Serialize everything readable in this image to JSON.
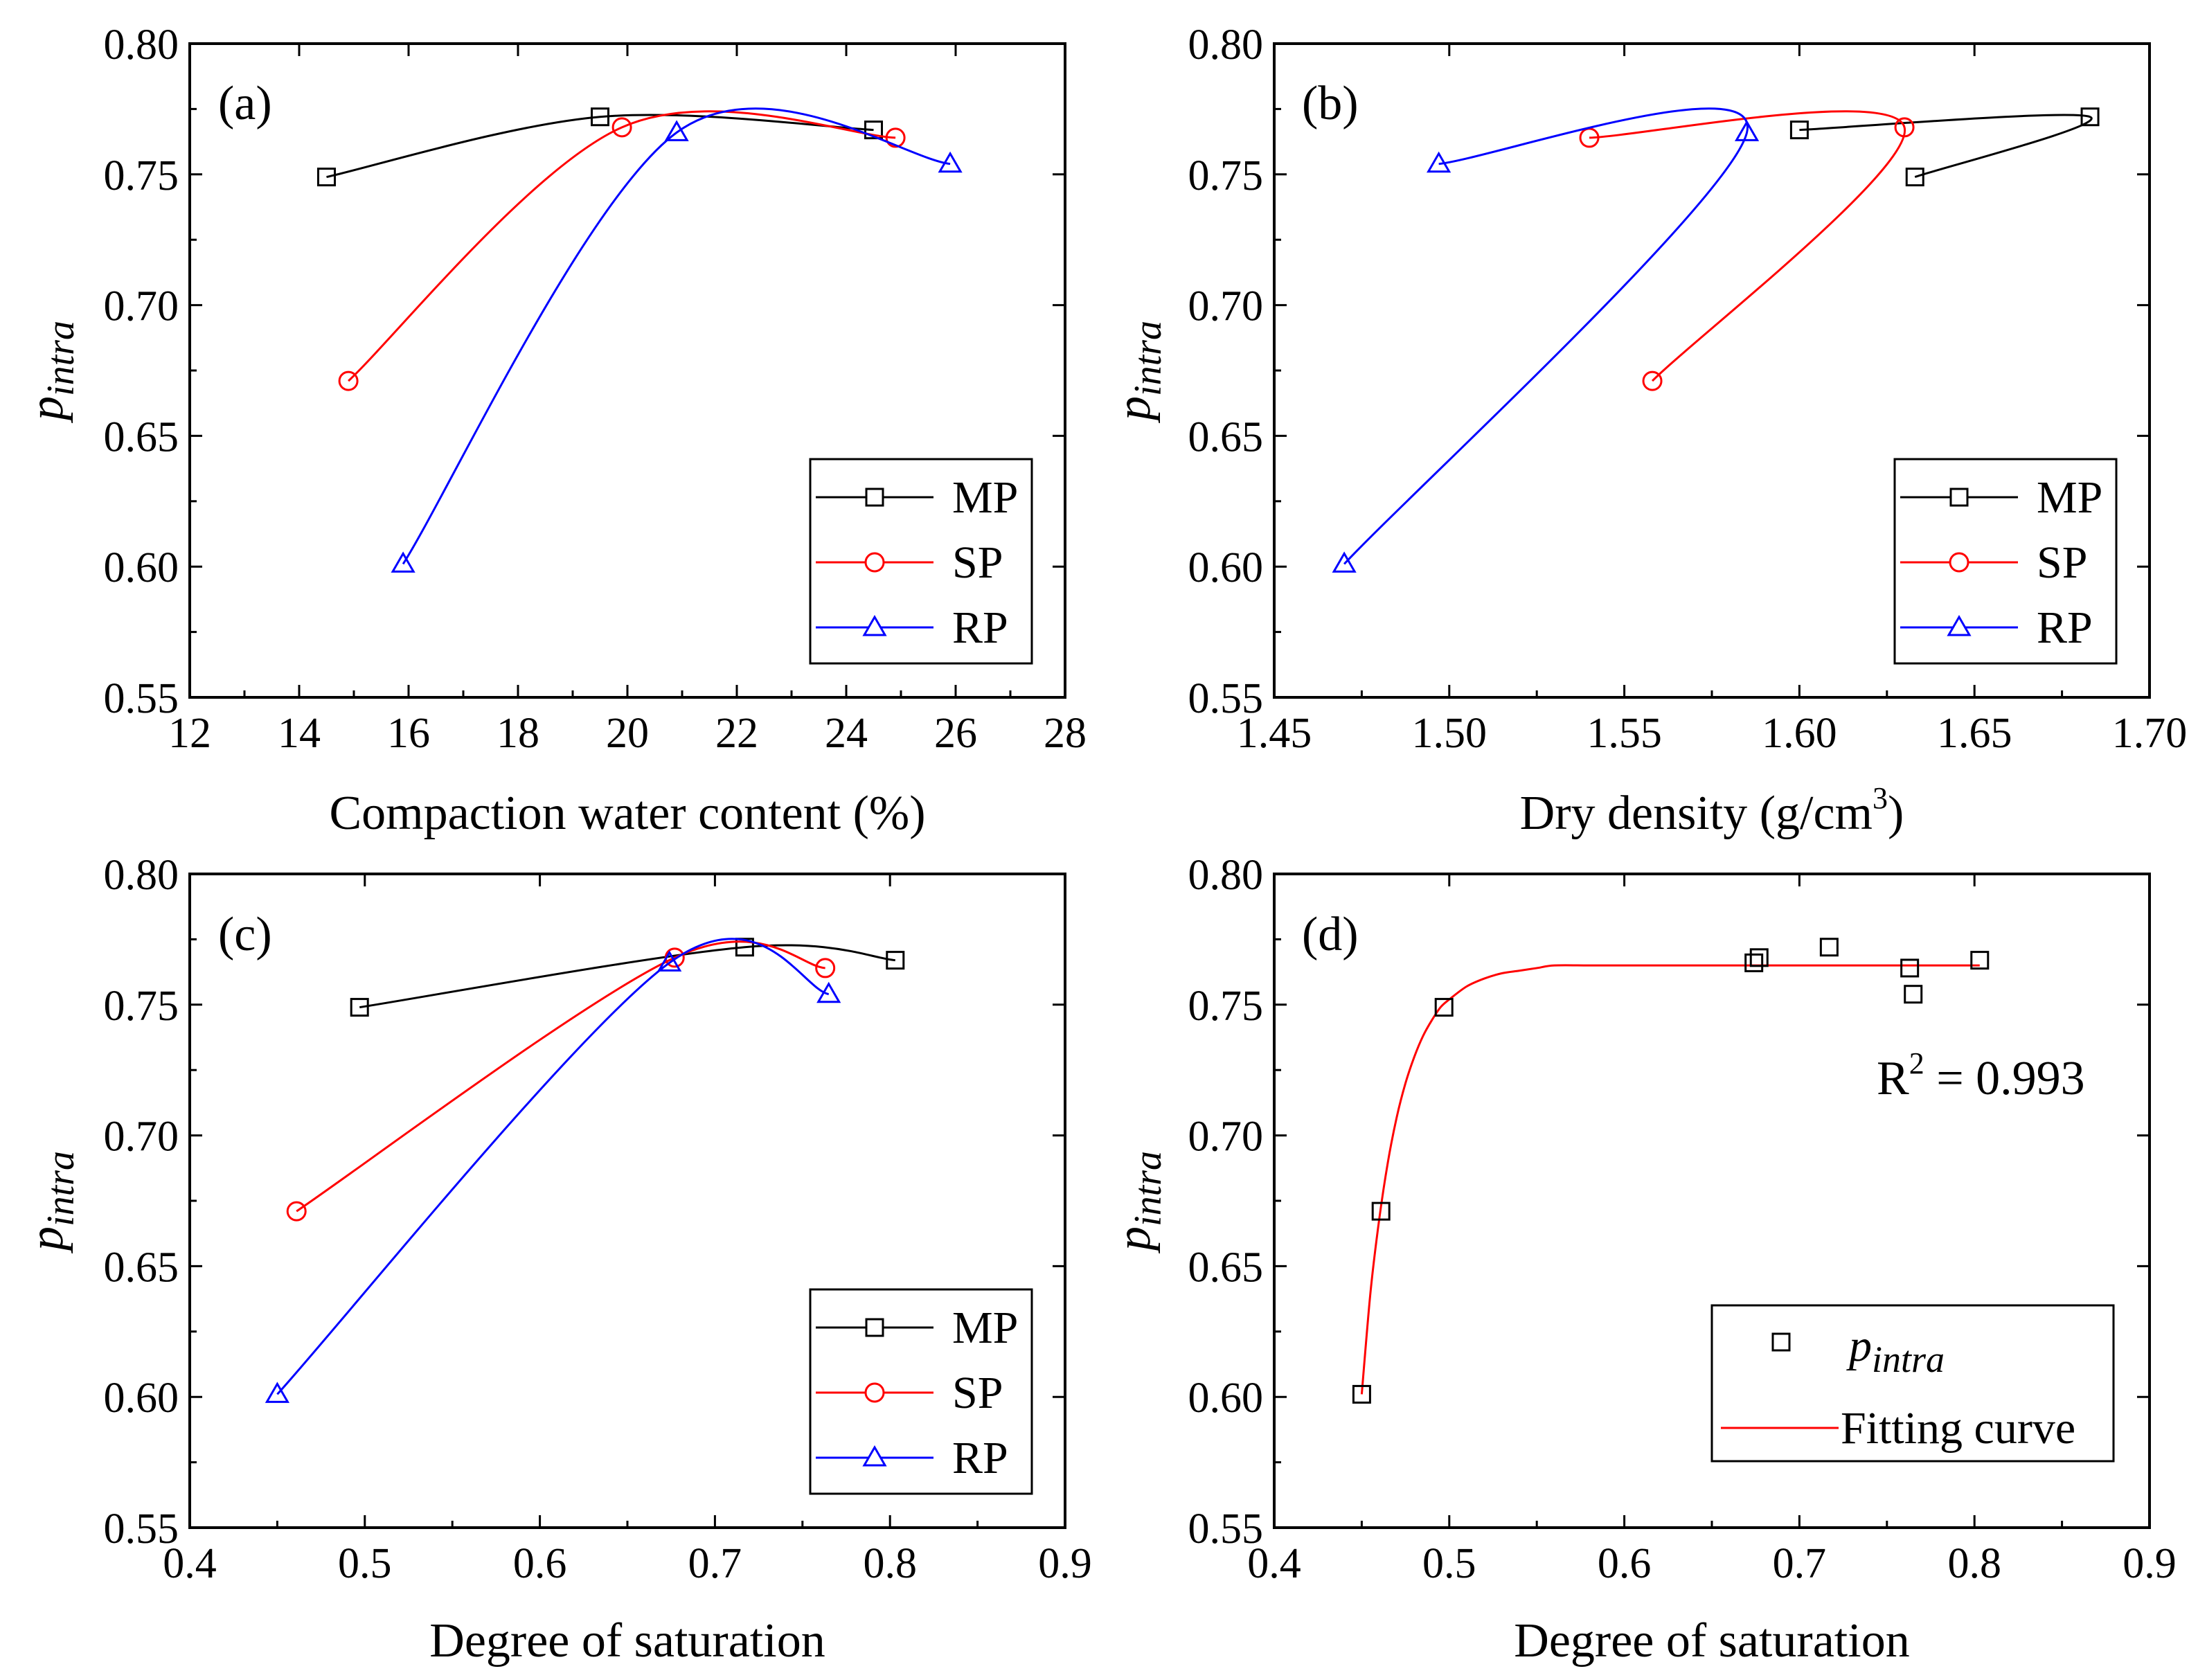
{
  "chart_data": [
    {
      "type": "line",
      "panel_label": "(a)",
      "xlabel": "Compaction water content (%)",
      "ylabel_main": "p",
      "ylabel_sub": "intra",
      "xlim": [
        12,
        28
      ],
      "ylim": [
        0.55,
        0.8
      ],
      "xticks": [
        12,
        14,
        16,
        18,
        20,
        22,
        24,
        26,
        28
      ],
      "xtick_labels": [
        "12",
        "14",
        "16",
        "18",
        "20",
        "22",
        "24",
        "26",
        "28"
      ],
      "yticks": [
        0.55,
        0.6,
        0.65,
        0.7,
        0.75,
        0.8
      ],
      "ytick_labels": [
        "0.55",
        "0.60",
        "0.65",
        "0.70",
        "0.75",
        "0.80"
      ],
      "legend_position": "bottom-right",
      "series": [
        {
          "name": "MP",
          "marker": "square",
          "color": "#000000",
          "x": [
            14.5,
            19.5,
            24.5
          ],
          "y": [
            0.749,
            0.772,
            0.767
          ]
        },
        {
          "name": "SP",
          "marker": "circle",
          "color": "#ff0000",
          "x": [
            14.9,
            19.9,
            24.9
          ],
          "y": [
            0.671,
            0.768,
            0.764
          ]
        },
        {
          "name": "RP",
          "marker": "triangle",
          "color": "#0000ff",
          "x": [
            15.9,
            20.9,
            25.9
          ],
          "y": [
            0.601,
            0.766,
            0.754
          ]
        }
      ]
    },
    {
      "type": "line",
      "panel_label": "(b)",
      "xlabel": "Dry density (g/cm",
      "xlabel_sup": "3",
      "xlabel_end": ")",
      "ylabel_main": "p",
      "ylabel_sub": "intra",
      "xlim": [
        1.45,
        1.7
      ],
      "ylim": [
        0.55,
        0.8
      ],
      "xticks": [
        1.45,
        1.5,
        1.55,
        1.6,
        1.65,
        1.7
      ],
      "xtick_labels": [
        "1.45",
        "1.50",
        "1.55",
        "1.60",
        "1.65",
        "1.70"
      ],
      "yticks": [
        0.55,
        0.6,
        0.65,
        0.7,
        0.75,
        0.8
      ],
      "ytick_labels": [
        "0.55",
        "0.60",
        "0.65",
        "0.70",
        "0.75",
        "0.80"
      ],
      "legend_position": "bottom-right",
      "series": [
        {
          "name": "MP",
          "marker": "square",
          "color": "#000000",
          "x": [
            1.633,
            1.683,
            1.6
          ],
          "y": [
            0.749,
            0.772,
            0.767
          ]
        },
        {
          "name": "SP",
          "marker": "circle",
          "color": "#ff0000",
          "x": [
            1.558,
            1.63,
            1.54
          ],
          "y": [
            0.671,
            0.768,
            0.764
          ]
        },
        {
          "name": "RP",
          "marker": "triangle",
          "color": "#0000ff",
          "x": [
            1.47,
            1.585,
            1.497
          ],
          "y": [
            0.601,
            0.766,
            0.754
          ]
        }
      ]
    },
    {
      "type": "line",
      "panel_label": "(c)",
      "xlabel": "Degree of saturation",
      "ylabel_main": "p",
      "ylabel_sub": "intra",
      "xlim": [
        0.4,
        0.9
      ],
      "ylim": [
        0.55,
        0.8
      ],
      "xticks": [
        0.4,
        0.5,
        0.6,
        0.7,
        0.8,
        0.9
      ],
      "xtick_labels": [
        "0.4",
        "0.5",
        "0.6",
        "0.7",
        "0.8",
        "0.9"
      ],
      "yticks": [
        0.55,
        0.6,
        0.65,
        0.7,
        0.75,
        0.8
      ],
      "ytick_labels": [
        "0.55",
        "0.60",
        "0.65",
        "0.70",
        "0.75",
        "0.80"
      ],
      "legend_position": "bottom-right",
      "series": [
        {
          "name": "MP",
          "marker": "square",
          "color": "#000000",
          "x": [
            0.497,
            0.717,
            0.803
          ],
          "y": [
            0.749,
            0.772,
            0.767
          ]
        },
        {
          "name": "SP",
          "marker": "circle",
          "color": "#ff0000",
          "x": [
            0.461,
            0.677,
            0.763
          ],
          "y": [
            0.671,
            0.768,
            0.764
          ]
        },
        {
          "name": "RP",
          "marker": "triangle",
          "color": "#0000ff",
          "x": [
            0.45,
            0.674,
            0.765
          ],
          "y": [
            0.601,
            0.766,
            0.754
          ]
        }
      ]
    },
    {
      "type": "scatter",
      "panel_label": "(d)",
      "xlabel": "Degree of saturation",
      "ylabel_main": "p",
      "ylabel_sub": "intra",
      "xlim": [
        0.4,
        0.9
      ],
      "ylim": [
        0.55,
        0.8
      ],
      "xticks": [
        0.4,
        0.5,
        0.6,
        0.7,
        0.8,
        0.9
      ],
      "xtick_labels": [
        "0.4",
        "0.5",
        "0.6",
        "0.7",
        "0.8",
        "0.9"
      ],
      "yticks": [
        0.55,
        0.6,
        0.65,
        0.7,
        0.75,
        0.8
      ],
      "ytick_labels": [
        "0.55",
        "0.60",
        "0.65",
        "0.70",
        "0.75",
        "0.80"
      ],
      "legend_position": "bottom-right",
      "annotation_main": "R",
      "annotation_sup": "2",
      "annotation_rest": " = 0.993",
      "legend_points_main": "p",
      "legend_points_sub": "intra",
      "legend_fit_label": "Fitting curve",
      "points": {
        "marker": "square",
        "color": "#000000",
        "x": [
          0.45,
          0.461,
          0.497,
          0.674,
          0.677,
          0.717,
          0.763,
          0.765,
          0.803
        ],
        "y": [
          0.601,
          0.671,
          0.749,
          0.766,
          0.768,
          0.772,
          0.764,
          0.754,
          0.767
        ]
      },
      "fit": {
        "color": "#ff0000",
        "x": [
          0.45,
          0.455,
          0.46,
          0.465,
          0.47,
          0.475,
          0.48,
          0.485,
          0.49,
          0.495,
          0.5,
          0.51,
          0.52,
          0.53,
          0.54,
          0.55,
          0.56,
          0.58,
          0.6,
          0.65,
          0.7,
          0.75,
          0.803
        ],
        "y": [
          0.601,
          0.64,
          0.668,
          0.69,
          0.707,
          0.72,
          0.73,
          0.738,
          0.744,
          0.749,
          0.752,
          0.757,
          0.76,
          0.762,
          0.763,
          0.764,
          0.765,
          0.765,
          0.765,
          0.765,
          0.765,
          0.765,
          0.765
        ]
      }
    }
  ]
}
